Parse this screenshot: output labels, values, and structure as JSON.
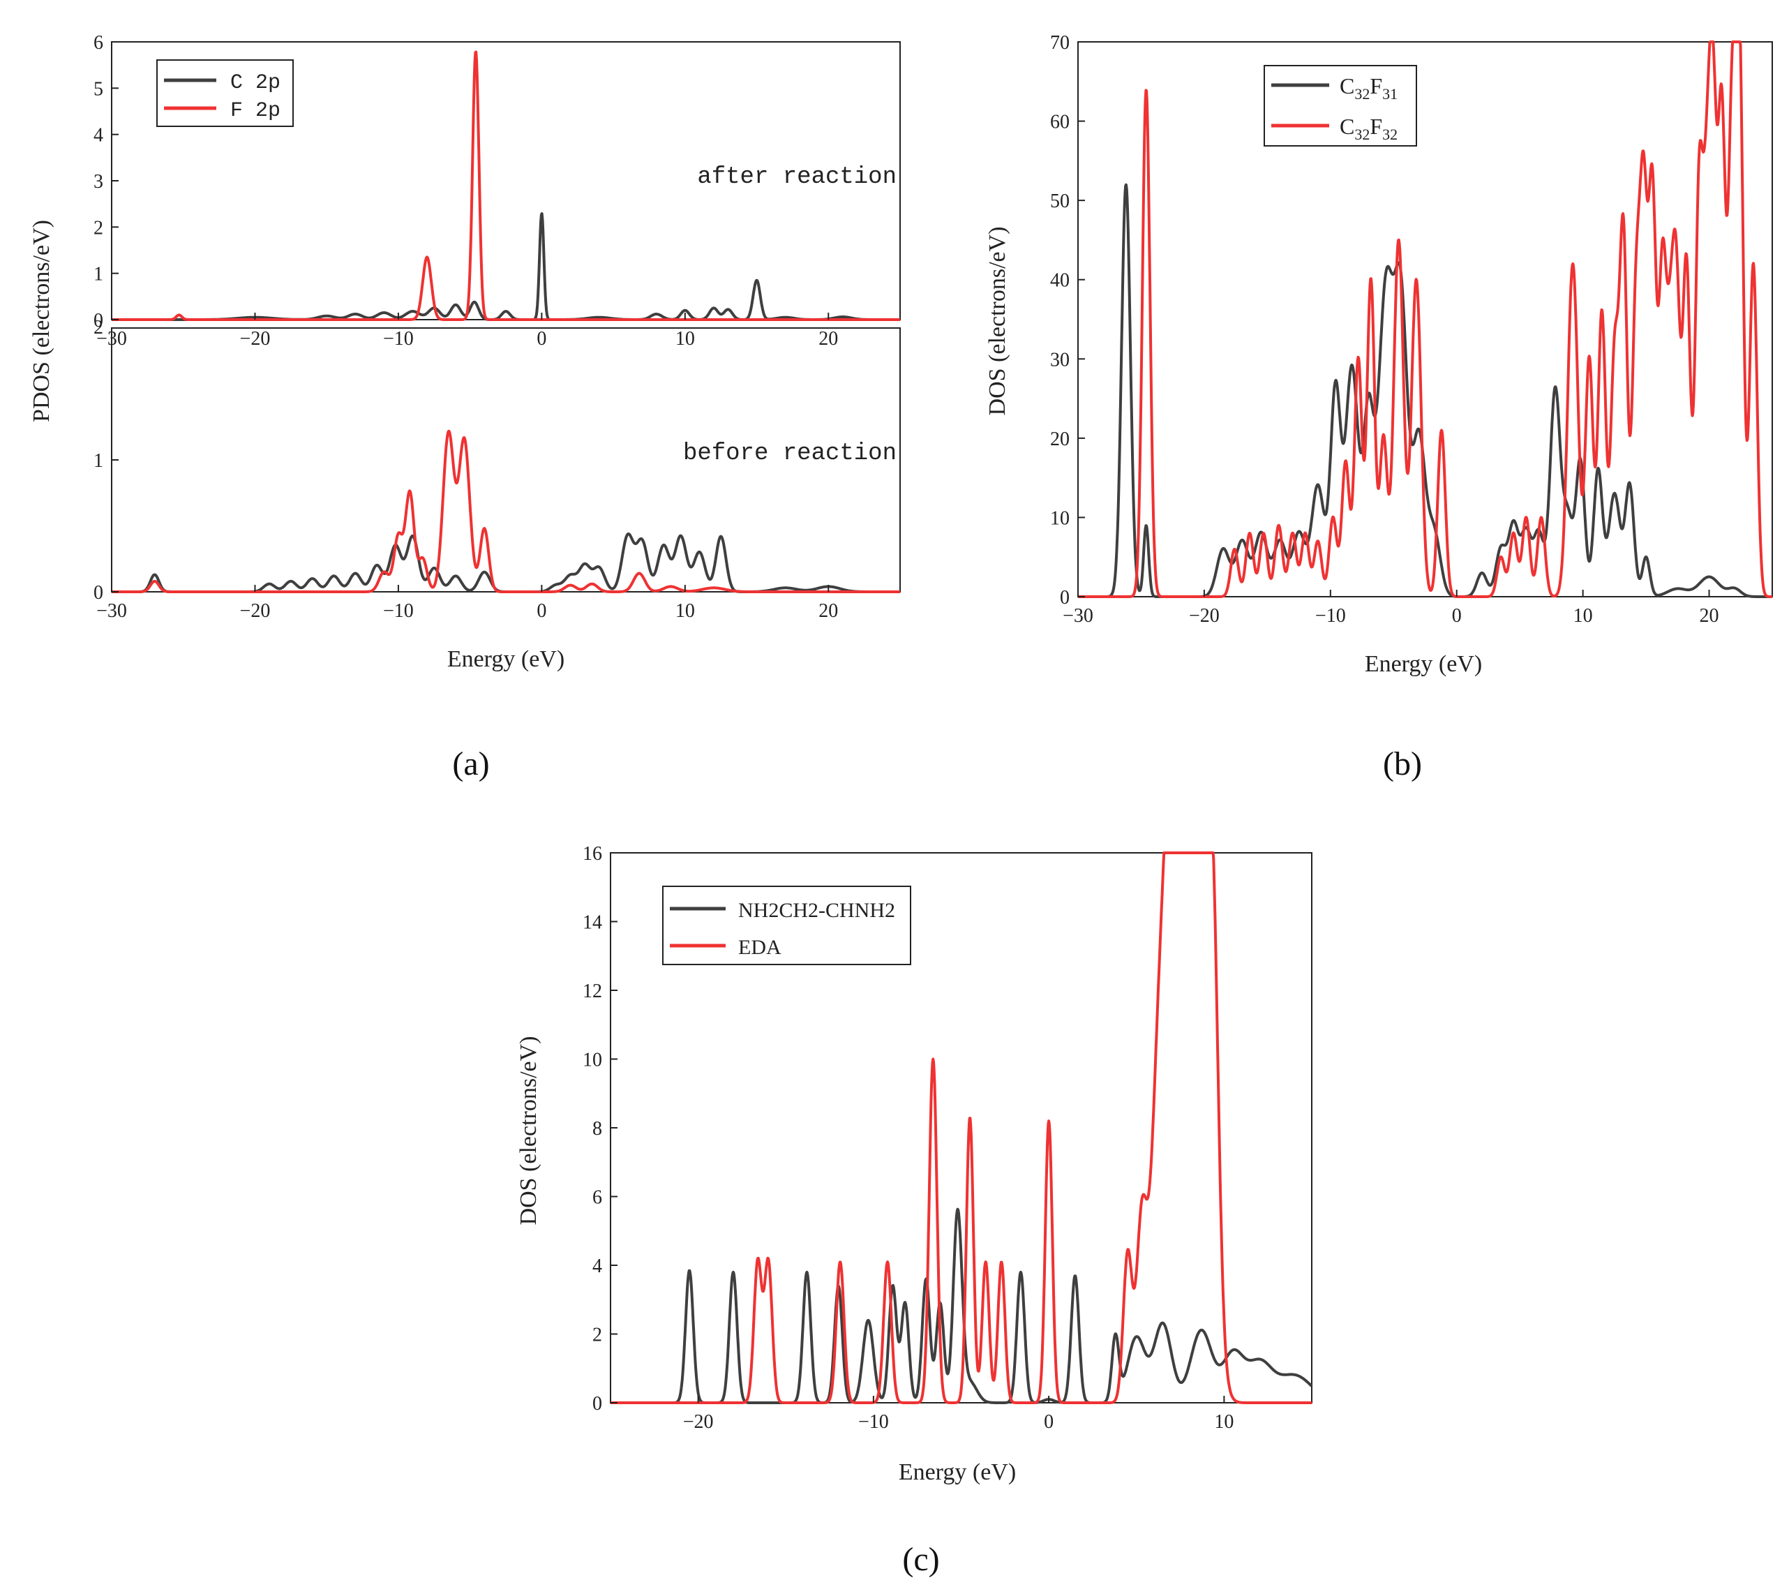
{
  "colors": {
    "black_series": "#3f3f3f",
    "red_series": "#ef3232",
    "axis": "#222222"
  },
  "chart_data": [
    {
      "id": "a",
      "caption": "(a)",
      "type": "line",
      "xlabel": "Energy (eV)",
      "ylabel": "PDOS (electrons/eV)",
      "xlim": [
        -30,
        25
      ],
      "xticks": [
        -30,
        -20,
        -10,
        0,
        10,
        20
      ],
      "legend": [
        {
          "name": "C 2p",
          "color": "#3f3f3f"
        },
        {
          "name": "F 2p",
          "color": "#ef3232"
        }
      ],
      "panels": [
        {
          "annotation": "after reaction",
          "ylim": [
            0,
            6
          ],
          "yticks": [
            0,
            1,
            2,
            3,
            4,
            5,
            6
          ],
          "series": [
            {
              "name": "C 2p",
              "color": "#3f3f3f",
              "peaks": [
                [
                  -20,
                  0.05,
                  1.2
                ],
                [
                  -15,
                  0.08,
                  0.6
                ],
                [
                  -13,
                  0.12,
                  0.5
                ],
                [
                  -11,
                  0.15,
                  0.5
                ],
                [
                  -9,
                  0.18,
                  0.5
                ],
                [
                  -7.5,
                  0.25,
                  0.4
                ],
                [
                  -6,
                  0.32,
                  0.35
                ],
                [
                  -4.7,
                  0.38,
                  0.3
                ],
                [
                  -2.5,
                  0.18,
                  0.3
                ],
                [
                  0,
                  2.3,
                  0.15
                ],
                [
                  4,
                  0.05,
                  0.8
                ],
                [
                  8,
                  0.12,
                  0.4
                ],
                [
                  10,
                  0.2,
                  0.3
                ],
                [
                  12,
                  0.25,
                  0.3
                ],
                [
                  13,
                  0.22,
                  0.3
                ],
                [
                  15,
                  0.85,
                  0.25
                ],
                [
                  17,
                  0.05,
                  0.6
                ],
                [
                  21,
                  0.06,
                  0.6
                ]
              ]
            },
            {
              "name": "F 2p",
              "color": "#ef3232",
              "peaks": [
                [
                  -25.3,
                  0.1,
                  0.2
                ],
                [
                  -8,
                  1.35,
                  0.3
                ],
                [
                  -4.6,
                  5.8,
                  0.22
                ]
              ]
            }
          ]
        },
        {
          "annotation": "before reaction",
          "ylim": [
            0,
            2
          ],
          "yticks": [
            0,
            1,
            2
          ],
          "series": [
            {
              "name": "C 2p",
              "color": "#3f3f3f",
              "peaks": [
                [
                  -27,
                  0.13,
                  0.3
                ],
                [
                  -19,
                  0.06,
                  0.4
                ],
                [
                  -17.5,
                  0.08,
                  0.4
                ],
                [
                  -16,
                  0.1,
                  0.4
                ],
                [
                  -14.5,
                  0.12,
                  0.4
                ],
                [
                  -13,
                  0.14,
                  0.4
                ],
                [
                  -11.5,
                  0.2,
                  0.4
                ],
                [
                  -10.2,
                  0.35,
                  0.4
                ],
                [
                  -9,
                  0.42,
                  0.4
                ],
                [
                  -7.5,
                  0.18,
                  0.4
                ],
                [
                  -6,
                  0.12,
                  0.4
                ],
                [
                  -4,
                  0.15,
                  0.4
                ],
                [
                  1,
                  0.05,
                  0.4
                ],
                [
                  2,
                  0.12,
                  0.4
                ],
                [
                  3,
                  0.2,
                  0.4
                ],
                [
                  4,
                  0.18,
                  0.4
                ],
                [
                  6,
                  0.42,
                  0.4
                ],
                [
                  7,
                  0.38,
                  0.4
                ],
                [
                  8.5,
                  0.35,
                  0.4
                ],
                [
                  9.7,
                  0.42,
                  0.4
                ],
                [
                  11,
                  0.3,
                  0.4
                ],
                [
                  12.5,
                  0.42,
                  0.35
                ],
                [
                  17,
                  0.03,
                  0.8
                ],
                [
                  20,
                  0.04,
                  0.8
                ]
              ]
            },
            {
              "name": "F 2p",
              "color": "#ef3232",
              "peaks": [
                [
                  -27,
                  0.08,
                  0.3
                ],
                [
                  -11,
                  0.15,
                  0.35
                ],
                [
                  -10,
                  0.42,
                  0.3
                ],
                [
                  -9.2,
                  0.75,
                  0.3
                ],
                [
                  -8.3,
                  0.25,
                  0.3
                ],
                [
                  -6.5,
                  1.2,
                  0.38
                ],
                [
                  -5.4,
                  1.15,
                  0.38
                ],
                [
                  -4,
                  0.48,
                  0.3
                ],
                [
                  2,
                  0.05,
                  0.4
                ],
                [
                  3.5,
                  0.06,
                  0.4
                ],
                [
                  6.8,
                  0.14,
                  0.4
                ],
                [
                  9,
                  0.04,
                  0.5
                ],
                [
                  12,
                  0.03,
                  0.8
                ]
              ]
            }
          ]
        }
      ]
    },
    {
      "id": "b",
      "caption": "(b)",
      "type": "line",
      "xlabel": "Energy (eV)",
      "ylabel": "DOS (electrons/eV)",
      "xlim": [
        -30,
        25
      ],
      "ylim": [
        0,
        70
      ],
      "xticks": [
        -30,
        -20,
        -10,
        0,
        10,
        20
      ],
      "yticks": [
        0,
        10,
        20,
        30,
        40,
        50,
        60,
        70
      ],
      "legend": [
        {
          "name": "C32F31",
          "base": "C",
          "sub1": "32",
          "mid": "F",
          "sub2": "31",
          "color": "#3f3f3f"
        },
        {
          "name": "C32F32",
          "base": "C",
          "sub1": "32",
          "mid": "F",
          "sub2": "32",
          "color": "#ef3232"
        }
      ],
      "series": [
        {
          "name": "C32F31",
          "color": "#3f3f3f",
          "peaks": [
            [
              -26.2,
              52,
              0.35
            ],
            [
              -24.6,
              9,
              0.2
            ],
            [
              -18.5,
              6,
              0.5
            ],
            [
              -17,
              7,
              0.5
            ],
            [
              -15.5,
              8,
              0.5
            ],
            [
              -14,
              7,
              0.5
            ],
            [
              -12.5,
              8,
              0.5
            ],
            [
              -11,
              14,
              0.5
            ],
            [
              -9.6,
              26,
              0.4
            ],
            [
              -8.3,
              29,
              0.5
            ],
            [
              -7,
              22,
              0.4
            ],
            [
              -5.6,
              39,
              0.6
            ],
            [
              -4.4,
              35,
              0.5
            ],
            [
              -3,
              20,
              0.5
            ],
            [
              -1.8,
              8,
              0.5
            ],
            [
              2,
              3,
              0.4
            ],
            [
              3.5,
              6,
              0.4
            ],
            [
              4.5,
              9,
              0.4
            ],
            [
              5.5,
              8,
              0.4
            ],
            [
              6.5,
              8,
              0.4
            ],
            [
              7.8,
              26,
              0.4
            ],
            [
              8.8,
              10,
              0.4
            ],
            [
              9.8,
              17,
              0.35
            ],
            [
              11.2,
              16,
              0.35
            ],
            [
              12.5,
              13,
              0.45
            ],
            [
              13.7,
              14,
              0.35
            ],
            [
              15,
              5,
              0.3
            ],
            [
              17.5,
              1,
              0.8
            ],
            [
              20,
              2.5,
              0.8
            ],
            [
              22,
              1,
              0.5
            ]
          ]
        },
        {
          "name": "C32F32",
          "color": "#ef3232",
          "peaks": [
            [
              -24.6,
              64,
              0.3
            ],
            [
              -17.6,
              6,
              0.3
            ],
            [
              -16.4,
              8,
              0.3
            ],
            [
              -15.3,
              8,
              0.3
            ],
            [
              -14.1,
              9,
              0.3
            ],
            [
              -13,
              8,
              0.3
            ],
            [
              -12,
              8,
              0.3
            ],
            [
              -11,
              7,
              0.3
            ],
            [
              -9.8,
              10,
              0.3
            ],
            [
              -8.8,
              17,
              0.3
            ],
            [
              -7.8,
              30,
              0.3
            ],
            [
              -6.8,
              40,
              0.3
            ],
            [
              -5.8,
              20,
              0.3
            ],
            [
              -4.6,
              45,
              0.38
            ],
            [
              -3.2,
              40,
              0.38
            ],
            [
              -1.2,
              21,
              0.3
            ],
            [
              3.5,
              5,
              0.3
            ],
            [
              4.5,
              8,
              0.3
            ],
            [
              5.5,
              10,
              0.3
            ],
            [
              6.7,
              10,
              0.3
            ],
            [
              9.2,
              42,
              0.4
            ],
            [
              10.5,
              30,
              0.3
            ],
            [
              11.5,
              36,
              0.3
            ],
            [
              12.5,
              30,
              0.3
            ],
            [
              13.2,
              46,
              0.3
            ],
            [
              14.2,
              36,
              0.3
            ],
            [
              14.8,
              48,
              0.3
            ],
            [
              15.5,
              50,
              0.3
            ],
            [
              16.3,
              40,
              0.3
            ],
            [
              16.9,
              26,
              0.3
            ],
            [
              17.4,
              37,
              0.3
            ],
            [
              18.2,
              42,
              0.3
            ],
            [
              19.2,
              50,
              0.3
            ],
            [
              19.8,
              40,
              0.3
            ],
            [
              20.3,
              57,
              0.3
            ],
            [
              21.0,
              59,
              0.3
            ],
            [
              21.8,
              57,
              0.3
            ],
            [
              22.4,
              68,
              0.3
            ],
            [
              23.5,
              42,
              0.3
            ]
          ]
        }
      ]
    },
    {
      "id": "c",
      "caption": "(c)",
      "type": "line",
      "xlabel": "Energy (eV)",
      "ylabel": "DOS (electrons/eV)",
      "xlim": [
        -25,
        15
      ],
      "ylim": [
        0,
        16
      ],
      "xticks": [
        -20,
        -10,
        0,
        10
      ],
      "yticks": [
        0,
        2,
        4,
        6,
        8,
        10,
        12,
        14,
        16
      ],
      "legend": [
        {
          "name": "NH2CH2-CHNH2",
          "color": "#3f3f3f"
        },
        {
          "name": "EDA",
          "color": "#ef3232"
        }
      ],
      "series": [
        {
          "name": "NH2CH2-CHNH2",
          "color": "#3f3f3f",
          "peaks": [
            [
              -20.5,
              3.85,
              0.22
            ],
            [
              -18,
              3.8,
              0.22
            ],
            [
              -13.8,
              3.8,
              0.22
            ],
            [
              -12,
              3.4,
              0.22
            ],
            [
              -10.3,
              2.4,
              0.3
            ],
            [
              -8.9,
              3.4,
              0.22
            ],
            [
              -8.2,
              2.9,
              0.22
            ],
            [
              -7,
              3.6,
              0.22
            ],
            [
              -6.2,
              2.9,
              0.22
            ],
            [
              -5.2,
              5.5,
              0.25
            ],
            [
              -4.5,
              0.6,
              0.4
            ],
            [
              -1.6,
              3.8,
              0.22
            ],
            [
              0,
              0.1,
              0.3
            ],
            [
              1.5,
              3.7,
              0.22
            ],
            [
              3.8,
              1.9,
              0.2
            ],
            [
              5,
              1.9,
              0.5
            ],
            [
              6.5,
              2.3,
              0.5
            ],
            [
              8.7,
              2.1,
              0.6
            ],
            [
              10.5,
              1.4,
              0.6
            ],
            [
              12,
              1.1,
              0.7
            ],
            [
              14,
              0.8,
              1.0
            ]
          ]
        },
        {
          "name": "EDA",
          "color": "#ef3232",
          "peaks": [
            [
              -16.6,
              4.1,
              0.22
            ],
            [
              -16.0,
              4.1,
              0.22
            ],
            [
              -11.9,
              4.1,
              0.22
            ],
            [
              -9.2,
              4.1,
              0.22
            ],
            [
              -6.6,
              10,
              0.22
            ],
            [
              -4.5,
              8.3,
              0.2
            ],
            [
              -3.6,
              4.1,
              0.2
            ],
            [
              -2.7,
              4.1,
              0.2
            ],
            [
              0,
              8.2,
              0.2
            ],
            [
              4.5,
              4.3,
              0.25
            ],
            [
              5.3,
              5.2,
              0.3
            ],
            [
              6.2,
              8.3,
              0.4
            ],
            [
              6.9,
              14,
              0.4
            ],
            [
              7.7,
              15.5,
              0.45
            ],
            [
              8.8,
              16,
              0.55
            ],
            [
              9.4,
              7,
              0.3
            ]
          ]
        }
      ]
    }
  ],
  "annotations": {
    "after_reaction": "after reaction",
    "before_reaction": "before reaction",
    "axis_tick_2_overlap": "2"
  }
}
